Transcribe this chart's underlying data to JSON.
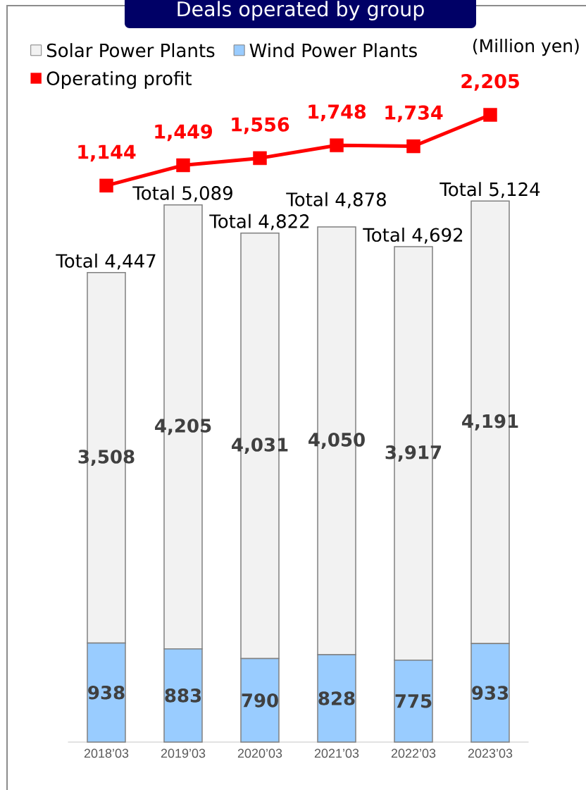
{
  "chart_data": {
    "type": "bar",
    "title": "Deals operated by group",
    "stacked": true,
    "categories": [
      "2018’03",
      "2019’03",
      "2020’03",
      "2021’03",
      "2022’03",
      "2023’03"
    ],
    "series": [
      {
        "name": "Wind Power Plants",
        "color": "#99ccff",
        "values": [
          938,
          883,
          790,
          828,
          775,
          933
        ],
        "value_labels": [
          "938",
          "883",
          "790",
          "828",
          "775",
          "933"
        ]
      },
      {
        "name": "Solar Power Plants",
        "color": "#f2f2f2",
        "values": [
          3508,
          4205,
          4031,
          4050,
          3917,
          4191
        ],
        "value_labels": [
          "3,508",
          "4,205",
          "4,031",
          "4,050",
          "3,917",
          "4,191"
        ]
      },
      {
        "name": "Operating profit",
        "type": "line",
        "axis": "y2",
        "color": "#ff0000",
        "marker": "square",
        "values": [
          1144,
          1449,
          1556,
          1748,
          1734,
          2205
        ],
        "value_labels": [
          "1,144",
          "1,449",
          "1,556",
          "1,748",
          "1,734",
          "2,205"
        ]
      }
    ],
    "totals": [
      "Total 4,447",
      "Total 5,089",
      "Total 4,822",
      "Total 4,878",
      "Total 4,692",
      "Total 5,124"
    ],
    "annotations": [
      "(Million yen)"
    ],
    "ylim": [
      0,
      6000
    ],
    "y2lim": [
      -7200,
      2300
    ],
    "tick_labels": "x",
    "legend": "top left"
  }
}
